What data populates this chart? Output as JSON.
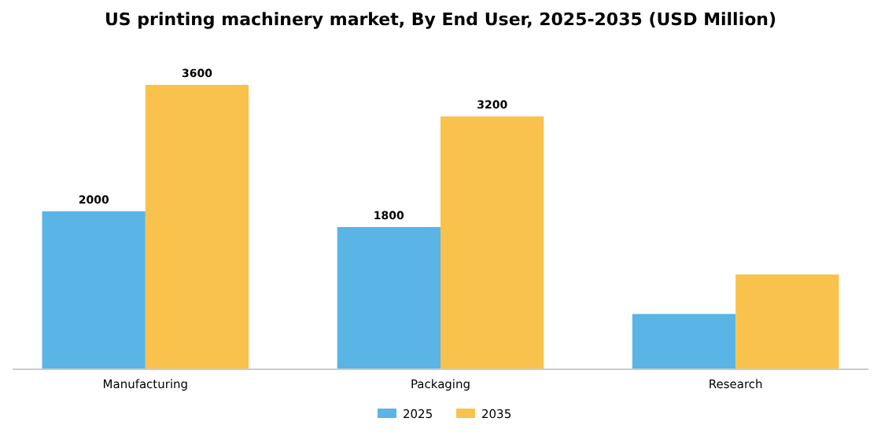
{
  "chart_data": {
    "type": "bar",
    "title": "US printing machinery market, By End User, 2025-2035 (USD Million)",
    "categories": [
      "Manufacturing",
      "Packaging",
      "Research"
    ],
    "series": [
      {
        "name": "2025",
        "color": "#5ab4e5",
        "values": [
          2000,
          1800,
          700
        ],
        "value_labels": [
          "2000",
          "1800",
          null
        ]
      },
      {
        "name": "2035",
        "color": "#f9c24c",
        "values": [
          3600,
          3200,
          1200
        ],
        "value_labels": [
          "3600",
          "3200",
          null
        ]
      }
    ],
    "legend": "bottom",
    "grid": false
  }
}
